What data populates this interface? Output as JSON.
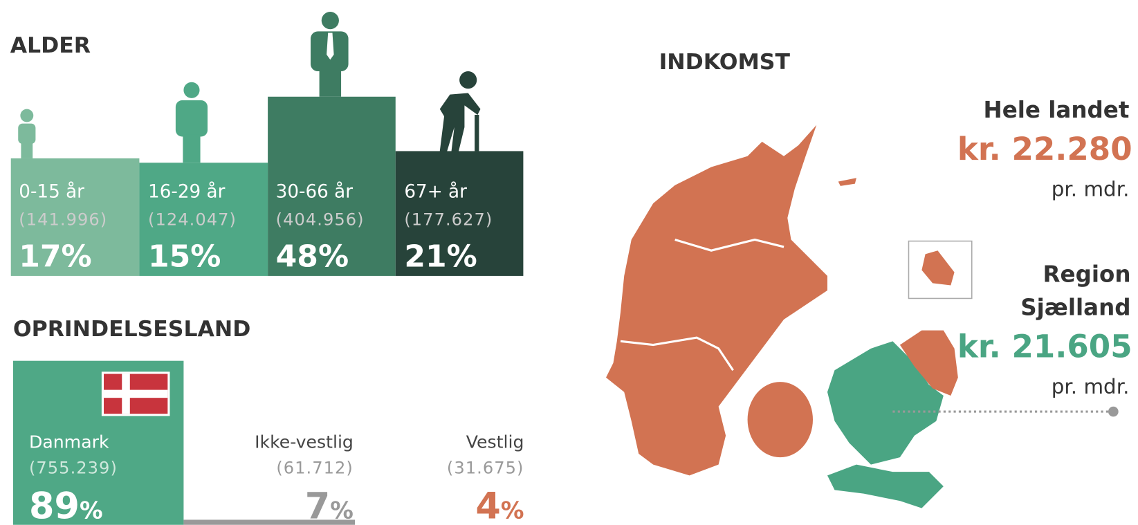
{
  "alder": {
    "title": "ALDER",
    "groups": [
      {
        "label": "0-15 år",
        "count": "(141.996)",
        "percent": "17%"
      },
      {
        "label": "16-29 år",
        "count": "(124.047)",
        "percent": "15%"
      },
      {
        "label": "30-66 år",
        "count": "(404.956)",
        "percent": "48%"
      },
      {
        "label": "67+ år",
        "count": "(177.627)",
        "percent": "21%"
      }
    ]
  },
  "oprindelsesland": {
    "title": "OPRINDELSESLAND",
    "groups": [
      {
        "label": "Danmark",
        "count": "(755.239)",
        "percent": "89",
        "percent_sign": "%"
      },
      {
        "label": "Ikke-vestlig",
        "count": "(61.712)",
        "percent": "7",
        "percent_sign": "%"
      },
      {
        "label": "Vestlig",
        "count": "(31.675)",
        "percent": "4",
        "percent_sign": "%"
      }
    ]
  },
  "indkomst": {
    "title": "INDKOMST",
    "hele_landet": {
      "label": "Hele landet",
      "amount": "kr. 22.280",
      "unit": "pr. mdr."
    },
    "region": {
      "label_line1": "Region",
      "label_line2": "Sjælland",
      "amount": "kr. 21.605",
      "unit": "pr. mdr."
    }
  }
}
